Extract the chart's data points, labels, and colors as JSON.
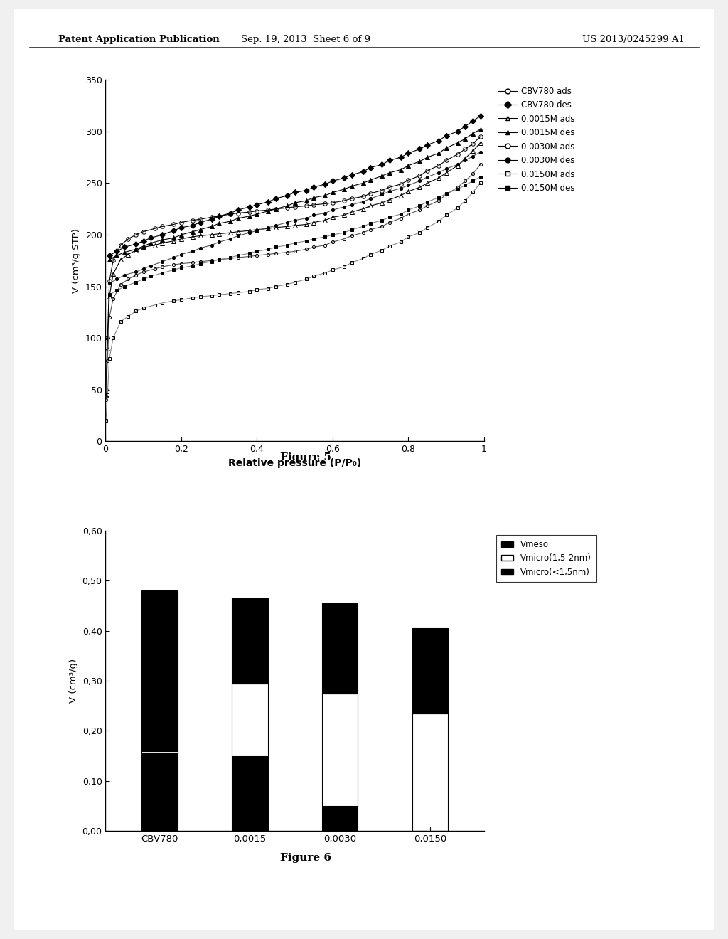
{
  "fig_title_top": "Patent Application Publication    Sep. 19, 2013  Sheet 6 of 9    US 2013/0245299 A1",
  "fig5_title": "Figure 5",
  "fig6_title": "Figure 6",
  "fig5": {
    "xlabel": "Relative pressure (P/P₀)",
    "ylabel": "V (cm³/g STP)",
    "xlim": [
      0,
      1
    ],
    "ylim": [
      0,
      350
    ],
    "xticks": [
      0,
      0.2,
      0.4,
      0.6,
      0.8,
      1
    ],
    "xtick_labels": [
      "0",
      "0,2",
      "0,4",
      "0,6",
      "0,8",
      "1"
    ],
    "yticks": [
      0,
      50,
      100,
      150,
      200,
      250,
      300,
      350
    ],
    "series": [
      {
        "label": "CBV780 ads",
        "marker": "o",
        "fillstyle": "none",
        "color": "#000000",
        "linewidth": 0.8,
        "markersize": 4,
        "x": [
          0.001,
          0.005,
          0.01,
          0.02,
          0.04,
          0.06,
          0.08,
          0.1,
          0.13,
          0.15,
          0.18,
          0.2,
          0.23,
          0.25,
          0.28,
          0.3,
          0.33,
          0.35,
          0.38,
          0.4,
          0.43,
          0.45,
          0.48,
          0.5,
          0.53,
          0.55,
          0.58,
          0.6,
          0.63,
          0.65,
          0.68,
          0.7,
          0.73,
          0.75,
          0.78,
          0.8,
          0.83,
          0.85,
          0.88,
          0.9,
          0.93,
          0.95,
          0.97,
          0.99
        ],
        "y": [
          50,
          100,
          155,
          175,
          190,
          196,
          200,
          203,
          206,
          208,
          210,
          212,
          214,
          215,
          217,
          218,
          220,
          221,
          222,
          223,
          224,
          225,
          226,
          227,
          228,
          229,
          230,
          231,
          233,
          235,
          237,
          240,
          243,
          246,
          249,
          253,
          257,
          262,
          267,
          272,
          278,
          283,
          288,
          295
        ]
      },
      {
        "label": "CBV780 des",
        "marker": "D",
        "fillstyle": "full",
        "color": "#000000",
        "linewidth": 0.8,
        "markersize": 4,
        "x": [
          0.99,
          0.97,
          0.95,
          0.93,
          0.9,
          0.88,
          0.85,
          0.83,
          0.8,
          0.78,
          0.75,
          0.73,
          0.7,
          0.68,
          0.65,
          0.63,
          0.6,
          0.58,
          0.55,
          0.53,
          0.5,
          0.48,
          0.45,
          0.43,
          0.4,
          0.38,
          0.35,
          0.33,
          0.3,
          0.28,
          0.25,
          0.23,
          0.2,
          0.18,
          0.15,
          0.12,
          0.1,
          0.08,
          0.05,
          0.03,
          0.01
        ],
        "y": [
          315,
          310,
          305,
          300,
          296,
          291,
          287,
          283,
          279,
          275,
          272,
          268,
          265,
          261,
          258,
          255,
          252,
          249,
          246,
          243,
          241,
          238,
          235,
          232,
          229,
          227,
          224,
          221,
          218,
          215,
          212,
          209,
          207,
          204,
          200,
          197,
          194,
          191,
          188,
          184,
          180
        ]
      },
      {
        "label": "0.0015M ads",
        "marker": "^",
        "fillstyle": "none",
        "color": "#000000",
        "linewidth": 0.8,
        "markersize": 4,
        "x": [
          0.001,
          0.005,
          0.01,
          0.02,
          0.04,
          0.06,
          0.08,
          0.1,
          0.13,
          0.15,
          0.18,
          0.2,
          0.23,
          0.25,
          0.28,
          0.3,
          0.33,
          0.35,
          0.38,
          0.4,
          0.43,
          0.45,
          0.48,
          0.5,
          0.53,
          0.55,
          0.58,
          0.6,
          0.63,
          0.65,
          0.68,
          0.7,
          0.73,
          0.75,
          0.78,
          0.8,
          0.83,
          0.85,
          0.88,
          0.9,
          0.93,
          0.95,
          0.97,
          0.99
        ],
        "y": [
          45,
          90,
          140,
          162,
          176,
          181,
          185,
          188,
          190,
          192,
          194,
          196,
          198,
          199,
          200,
          201,
          202,
          203,
          204,
          205,
          206,
          207,
          208,
          209,
          210,
          212,
          214,
          217,
          219,
          222,
          225,
          228,
          231,
          234,
          238,
          242,
          246,
          250,
          255,
          260,
          267,
          274,
          281,
          289
        ]
      },
      {
        "label": "0.0015M des",
        "marker": "^",
        "fillstyle": "full",
        "color": "#000000",
        "linewidth": 0.8,
        "markersize": 4,
        "x": [
          0.99,
          0.97,
          0.95,
          0.93,
          0.9,
          0.88,
          0.85,
          0.83,
          0.8,
          0.78,
          0.75,
          0.73,
          0.7,
          0.68,
          0.65,
          0.63,
          0.6,
          0.58,
          0.55,
          0.53,
          0.5,
          0.48,
          0.45,
          0.43,
          0.4,
          0.38,
          0.35,
          0.33,
          0.3,
          0.28,
          0.25,
          0.23,
          0.2,
          0.18,
          0.15,
          0.12,
          0.1,
          0.08,
          0.05,
          0.03,
          0.01
        ],
        "y": [
          302,
          298,
          293,
          289,
          284,
          279,
          275,
          271,
          267,
          263,
          260,
          257,
          253,
          250,
          247,
          244,
          241,
          238,
          236,
          233,
          231,
          228,
          225,
          223,
          220,
          218,
          216,
          213,
          211,
          208,
          205,
          203,
          200,
          197,
          195,
          192,
          189,
          186,
          183,
          180,
          176
        ]
      },
      {
        "label": "0.0030M ads",
        "marker": "o",
        "fillstyle": "none",
        "color": "#555555",
        "linewidth": 0.8,
        "markersize": 3,
        "x": [
          0.001,
          0.005,
          0.01,
          0.02,
          0.04,
          0.06,
          0.08,
          0.1,
          0.13,
          0.15,
          0.18,
          0.2,
          0.23,
          0.25,
          0.28,
          0.3,
          0.33,
          0.35,
          0.38,
          0.4,
          0.43,
          0.45,
          0.48,
          0.5,
          0.53,
          0.55,
          0.58,
          0.6,
          0.63,
          0.65,
          0.68,
          0.7,
          0.73,
          0.75,
          0.78,
          0.8,
          0.83,
          0.85,
          0.88,
          0.9,
          0.93,
          0.95,
          0.97,
          0.99
        ],
        "y": [
          40,
          78,
          120,
          138,
          152,
          157,
          161,
          164,
          167,
          169,
          171,
          172,
          173,
          174,
          175,
          176,
          177,
          178,
          179,
          180,
          181,
          182,
          183,
          184,
          186,
          188,
          190,
          193,
          196,
          199,
          202,
          205,
          208,
          212,
          216,
          220,
          224,
          228,
          233,
          239,
          246,
          252,
          259,
          268
        ]
      },
      {
        "label": "0.0030M des",
        "marker": "o",
        "fillstyle": "full",
        "color": "#555555",
        "linewidth": 0.8,
        "markersize": 3,
        "x": [
          0.99,
          0.97,
          0.95,
          0.93,
          0.9,
          0.88,
          0.85,
          0.83,
          0.8,
          0.78,
          0.75,
          0.73,
          0.7,
          0.68,
          0.65,
          0.63,
          0.6,
          0.58,
          0.55,
          0.53,
          0.5,
          0.48,
          0.45,
          0.43,
          0.4,
          0.38,
          0.35,
          0.33,
          0.3,
          0.28,
          0.25,
          0.23,
          0.2,
          0.18,
          0.15,
          0.12,
          0.1,
          0.08,
          0.05,
          0.03,
          0.01
        ],
        "y": [
          280,
          276,
          272,
          268,
          264,
          260,
          256,
          252,
          248,
          245,
          242,
          239,
          235,
          232,
          229,
          227,
          224,
          221,
          219,
          216,
          214,
          212,
          209,
          207,
          204,
          202,
          199,
          196,
          193,
          190,
          187,
          184,
          181,
          178,
          174,
          170,
          167,
          164,
          161,
          157,
          153
        ]
      },
      {
        "label": "0.0150M ads",
        "marker": "s",
        "fillstyle": "none",
        "color": "#888888",
        "linewidth": 0.8,
        "markersize": 3,
        "x": [
          0.001,
          0.005,
          0.01,
          0.02,
          0.04,
          0.06,
          0.08,
          0.1,
          0.13,
          0.15,
          0.18,
          0.2,
          0.23,
          0.25,
          0.28,
          0.3,
          0.33,
          0.35,
          0.38,
          0.4,
          0.43,
          0.45,
          0.48,
          0.5,
          0.53,
          0.55,
          0.58,
          0.6,
          0.63,
          0.65,
          0.68,
          0.7,
          0.73,
          0.75,
          0.78,
          0.8,
          0.83,
          0.85,
          0.88,
          0.9,
          0.93,
          0.95,
          0.97,
          0.99
        ],
        "y": [
          20,
          45,
          80,
          100,
          116,
          121,
          126,
          129,
          132,
          134,
          136,
          137,
          139,
          140,
          141,
          142,
          143,
          144,
          145,
          147,
          148,
          150,
          152,
          154,
          157,
          160,
          163,
          166,
          169,
          173,
          177,
          181,
          185,
          189,
          193,
          198,
          202,
          207,
          213,
          219,
          226,
          233,
          241,
          250
        ]
      },
      {
        "label": "0.0150M des",
        "marker": "s",
        "fillstyle": "full",
        "color": "#888888",
        "linewidth": 0.8,
        "markersize": 3,
        "x": [
          0.99,
          0.97,
          0.95,
          0.93,
          0.9,
          0.88,
          0.85,
          0.83,
          0.8,
          0.78,
          0.75,
          0.73,
          0.7,
          0.68,
          0.65,
          0.63,
          0.6,
          0.58,
          0.55,
          0.53,
          0.5,
          0.48,
          0.45,
          0.43,
          0.4,
          0.38,
          0.35,
          0.33,
          0.3,
          0.28,
          0.25,
          0.23,
          0.2,
          0.18,
          0.15,
          0.12,
          0.1,
          0.08,
          0.05,
          0.03,
          0.01
        ],
        "y": [
          256,
          252,
          248,
          244,
          240,
          236,
          232,
          228,
          224,
          220,
          217,
          214,
          211,
          208,
          205,
          202,
          200,
          198,
          196,
          194,
          192,
          190,
          188,
          186,
          184,
          182,
          180,
          178,
          176,
          174,
          172,
          170,
          168,
          166,
          163,
          160,
          157,
          154,
          150,
          146,
          142
        ]
      }
    ],
    "legend_markers": [
      {
        "marker": "o",
        "fillstyle": "none",
        "label": "CBV780 ads"
      },
      {
        "marker": "D",
        "fillstyle": "full",
        "label": "CBV780 des"
      },
      {
        "marker": "^",
        "fillstyle": "none",
        "label": "0.0015M ads"
      },
      {
        "marker": "^",
        "fillstyle": "full",
        "label": "0.0015M des"
      },
      {
        "marker": "o",
        "fillstyle": "none",
        "label": "0.0030M ads"
      },
      {
        "marker": "o",
        "fillstyle": "full",
        "label": "0.0030M des"
      },
      {
        "marker": "s",
        "fillstyle": "none",
        "label": "0.0150M ads"
      },
      {
        "marker": "s",
        "fillstyle": "full",
        "label": "0.0150M des"
      }
    ]
  },
  "fig6": {
    "ylabel": "V (cm³/g)",
    "ylim": [
      0,
      0.6
    ],
    "yticks": [
      0.0,
      0.1,
      0.2,
      0.3,
      0.4,
      0.5,
      0.6
    ],
    "ytick_labels": [
      "0,00",
      "0,10",
      "0,20",
      "0,30",
      "0,40",
      "0,50",
      "0,60"
    ],
    "categories": [
      "CBV780",
      "0,0015",
      "0,0030",
      "0,0150"
    ],
    "vmicro_15": [
      0.155,
      0.15,
      0.05,
      0.0
    ],
    "vmicro_12": [
      0.005,
      0.145,
      0.225,
      0.235
    ],
    "vmeso": [
      0.32,
      0.17,
      0.18,
      0.17
    ],
    "legend_labels": [
      "Vmeso",
      "Vmicro(1,5-2nm)",
      "Vmicro(<1,5nm)"
    ]
  },
  "background_color": "#f0f0f0",
  "paper_color": "#ffffff"
}
